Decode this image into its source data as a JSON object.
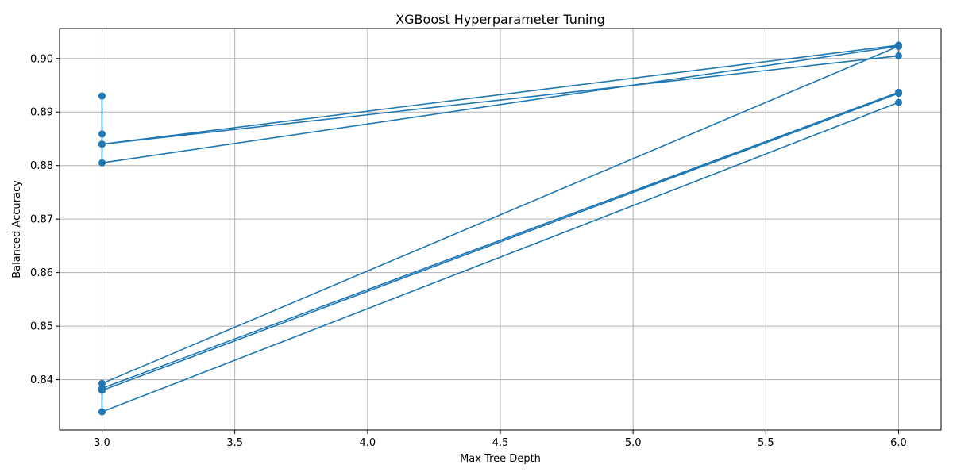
{
  "chart_data": {
    "type": "line",
    "title": "XGBoost Hyperparameter Tuning",
    "xlabel": "Max Tree Depth",
    "ylabel": "Balanced Accuracy",
    "xlim": [
      2.84,
      6.16
    ],
    "ylim": [
      0.8306,
      0.9056
    ],
    "x_ticks": [
      "3.0",
      "3.5",
      "4.0",
      "4.5",
      "5.0",
      "5.5",
      "6.0"
    ],
    "y_ticks": [
      "0.84",
      "0.85",
      "0.86",
      "0.87",
      "0.88",
      "0.89",
      "0.90"
    ],
    "grid": true,
    "color": "#1f77b4",
    "marker": "circle",
    "series": [
      {
        "x": [
          3,
          3,
          3,
          6,
          6,
          3,
          3,
          6,
          6,
          3,
          3,
          6,
          6,
          3,
          3,
          6
        ],
        "y": [
          0.893,
          0.8859,
          0.884,
          0.9025,
          0.9023,
          0.8805,
          0.884,
          0.9005,
          0.9023,
          0.8393,
          0.838,
          0.8935,
          0.8937,
          0.8384,
          0.834,
          0.8918
        ]
      }
    ]
  }
}
